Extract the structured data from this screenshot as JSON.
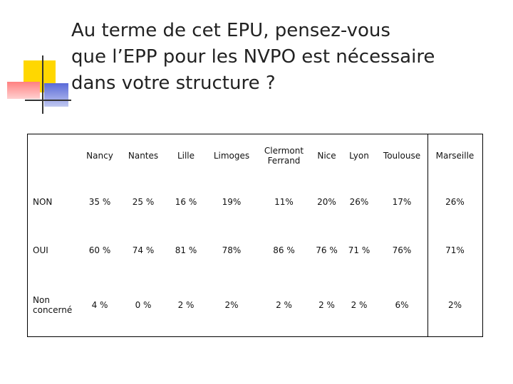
{
  "title": [
    "Au terme de cet EPU, pensez-vous",
    "que l’EPP pour les NVPO est nécessaire",
    "dans votre structure ?"
  ],
  "table": {
    "columns": [
      "Nancy",
      "Nantes",
      "Lille",
      "Limoges",
      "Clermont Ferrand",
      "Nice",
      "Lyon",
      "Toulouse",
      "Marseille"
    ],
    "rows": [
      {
        "label": "NON",
        "cells": [
          "35 %",
          "25 %",
          "16 %",
          "19%",
          "11%",
          "20%",
          "26%",
          "17%",
          "26%"
        ]
      },
      {
        "label": "OUI",
        "cells": [
          "60 %",
          "74 %",
          "81 %",
          "78%",
          "86 %",
          "76 %",
          "71 %",
          "76%",
          "71%"
        ]
      },
      {
        "label": "Non concerné",
        "cells": [
          "4 %",
          "0 %",
          "2 %",
          "2%",
          "2 %",
          "2 %",
          "2 %",
          "6%",
          "2%"
        ]
      }
    ]
  }
}
